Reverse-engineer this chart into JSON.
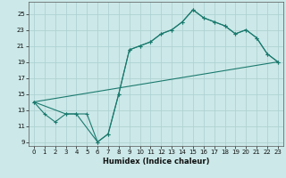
{
  "xlabel": "Humidex (Indice chaleur)",
  "xlim": [
    -0.5,
    23.5
  ],
  "ylim": [
    8.5,
    26.5
  ],
  "yticks": [
    9,
    11,
    13,
    15,
    17,
    19,
    21,
    23,
    25
  ],
  "xticks": [
    0,
    1,
    2,
    3,
    4,
    5,
    6,
    7,
    8,
    9,
    10,
    11,
    12,
    13,
    14,
    15,
    16,
    17,
    18,
    19,
    20,
    21,
    22,
    23
  ],
  "bg_color": "#cce8e8",
  "line_color": "#1a7a6e",
  "grid_color": "#aacfcf",
  "line1_x": [
    0,
    1,
    2,
    3,
    4,
    5,
    6,
    7,
    8,
    9,
    10,
    11,
    12,
    13,
    14,
    15,
    16,
    17,
    18,
    19,
    20,
    21,
    22,
    23
  ],
  "line1_y": [
    14.0,
    12.5,
    11.5,
    12.5,
    12.5,
    12.5,
    9.0,
    10.0,
    15.0,
    20.5,
    21.0,
    21.5,
    22.5,
    23.0,
    24.0,
    25.5,
    24.5,
    24.0,
    23.5,
    22.5,
    23.0,
    22.0,
    20.0,
    19.0
  ],
  "line2_x": [
    0,
    3,
    4,
    6,
    7,
    8,
    9,
    10,
    11,
    12,
    13,
    14,
    15,
    16,
    17,
    18,
    19,
    20,
    21,
    22,
    23
  ],
  "line2_y": [
    14.0,
    12.5,
    12.5,
    9.0,
    10.0,
    15.0,
    20.5,
    21.0,
    21.5,
    22.5,
    23.0,
    24.0,
    25.5,
    24.5,
    24.0,
    23.5,
    22.5,
    23.0,
    22.0,
    20.0,
    19.0
  ],
  "line3_x": [
    0,
    23
  ],
  "line3_y": [
    14.0,
    19.0
  ]
}
